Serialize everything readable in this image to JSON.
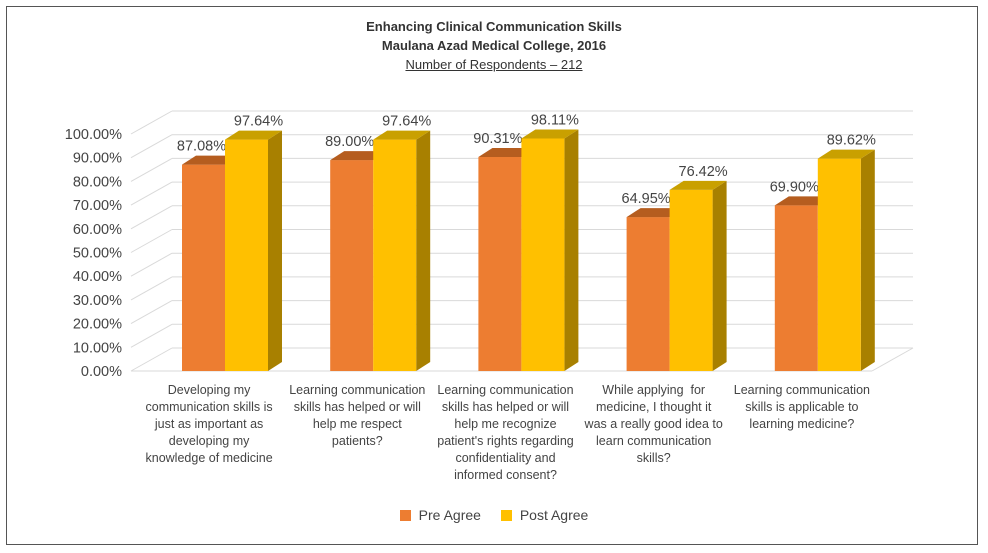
{
  "chart_data": {
    "type": "bar",
    "title": "Enhancing Clinical Communication Skills",
    "subtitle": "Maulana Azad Medical College, 2016",
    "subtitle2": "Number of Respondents – 212",
    "categories": [
      "Developing my communication skills is just as important as developing my knowledge of medicine",
      "Learning communication skills has helped or will help me respect patients?",
      "Learning communication skills has helped or will help me recognize patient's rights regarding confidentiality and informed consent?",
      "While applying  for medicine, I thought it was a really good idea to learn communication skills?",
      "Learning communication skills is applicable to learning medicine?"
    ],
    "category_lines": [
      [
        "Developing my",
        "communication skills is",
        "just as important as",
        "developing my",
        "knowledge of medicine"
      ],
      [
        "Learning communication",
        "skills has helped or will",
        "help me respect",
        "patients?"
      ],
      [
        "Learning communication",
        "skills has helped or will",
        "help me recognize",
        "patient's rights regarding",
        "confidentiality and",
        "informed consent?"
      ],
      [
        "While applying  for",
        "medicine, I thought it",
        "was a really good idea to",
        "learn communication",
        "skills?"
      ],
      [
        "Learning communication",
        "skills is applicable to",
        "learning medicine?"
      ]
    ],
    "series": [
      {
        "name": "Pre Agree",
        "values": [
          87.08,
          89.0,
          90.31,
          64.95,
          69.9
        ],
        "value_labels": [
          "87.08%",
          "89.00%",
          "90.31%",
          "64.95%",
          "69.90%"
        ],
        "color": "#ED7D31",
        "top_color": "#B55D1F"
      },
      {
        "name": "Post Agree",
        "values": [
          97.64,
          97.64,
          98.11,
          76.42,
          89.62
        ],
        "value_labels": [
          "97.64%",
          "97.64%",
          "98.11%",
          "76.42%",
          "89.62%"
        ],
        "color": "#FFC000",
        "top_color": "#C9A000",
        "side_color": "#A88000"
      }
    ],
    "yticks": [
      "0.00%",
      "10.00%",
      "20.00%",
      "30.00%",
      "40.00%",
      "50.00%",
      "60.00%",
      "70.00%",
      "80.00%",
      "90.00%",
      "100.00%"
    ],
    "ylim": [
      0,
      100
    ],
    "grid": true,
    "legend_position": "bottom"
  }
}
